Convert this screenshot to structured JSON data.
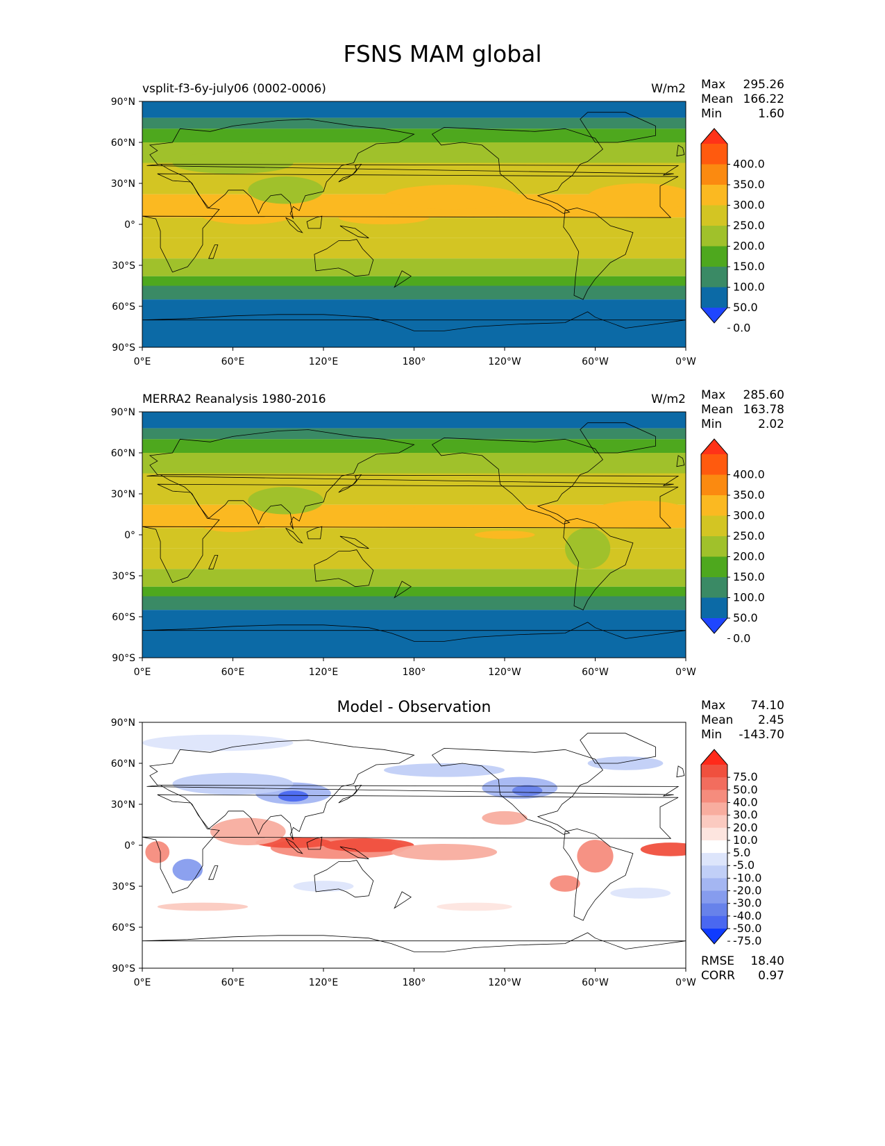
{
  "figure": {
    "title": "FSNS MAM global"
  },
  "panels": [
    {
      "left_title": "vsplit-f3-6y-july06 (0002-0006)",
      "center_title": "",
      "units": "W/m2",
      "stats": [
        [
          "Max",
          "295.26"
        ],
        [
          "Mean",
          "166.22"
        ],
        [
          "Min",
          "1.60"
        ]
      ],
      "colorbar": {
        "labels": [
          "400.0",
          "350.0",
          "300.0",
          "250.0",
          "200.0",
          "150.0",
          "100.0",
          "50.0",
          "0.0"
        ],
        "colors": [
          "#ff3318",
          "#ff5a0e",
          "#fb8a10",
          "#fbb921",
          "#d3c523",
          "#a0c12b",
          "#4ea81e",
          "#3a8a65",
          "#0c6aa6",
          "#1f46ff"
        ]
      },
      "bottom_stats": []
    },
    {
      "left_title": "MERRA2 Reanalysis 1980-2016",
      "center_title": "",
      "units": "W/m2",
      "stats": [
        [
          "Max",
          "285.60"
        ],
        [
          "Mean",
          "163.78"
        ],
        [
          "Min",
          "2.02"
        ]
      ],
      "colorbar": {
        "labels": [
          "400.0",
          "350.0",
          "300.0",
          "250.0",
          "200.0",
          "150.0",
          "100.0",
          "50.0",
          "0.0"
        ],
        "colors": [
          "#ff3318",
          "#ff5a0e",
          "#fb8a10",
          "#fbb921",
          "#d3c523",
          "#a0c12b",
          "#4ea81e",
          "#3a8a65",
          "#0c6aa6",
          "#1f46ff"
        ]
      },
      "bottom_stats": []
    },
    {
      "left_title": "",
      "center_title": "Model - Observation",
      "units": "",
      "stats": [
        [
          "Max",
          "74.10"
        ],
        [
          "Mean",
          "2.45"
        ],
        [
          "Min",
          "-143.70"
        ]
      ],
      "colorbar": {
        "labels": [
          "75.0",
          "50.0",
          "40.0",
          "30.0",
          "20.0",
          "10.0",
          "5.0",
          "-5.0",
          "-10.0",
          "-20.0",
          "-30.0",
          "-40.0",
          "-50.0",
          "-75.0"
        ],
        "colors": [
          "#ff2a1a",
          "#f0503e",
          "#f26d5e",
          "#f58c7d",
          "#f8ad9f",
          "#fbcac0",
          "#fde5df",
          "#ffffff",
          "#dde5fb",
          "#c1cff7",
          "#a4b6f2",
          "#869cee",
          "#6782ea",
          "#4a68f0",
          "#0f3bff"
        ]
      },
      "bottom_stats": [
        [
          "RMSE",
          "18.40"
        ],
        [
          "CORR",
          "0.97"
        ]
      ]
    }
  ],
  "axes": {
    "lat_ticks": [
      "90°N",
      "60°N",
      "30°N",
      "0°",
      "30°S",
      "60°S",
      "90°S"
    ],
    "lon_ticks": [
      "0°E",
      "60°E",
      "120°E",
      "180°",
      "120°W",
      "60°W",
      "0°W"
    ]
  }
}
